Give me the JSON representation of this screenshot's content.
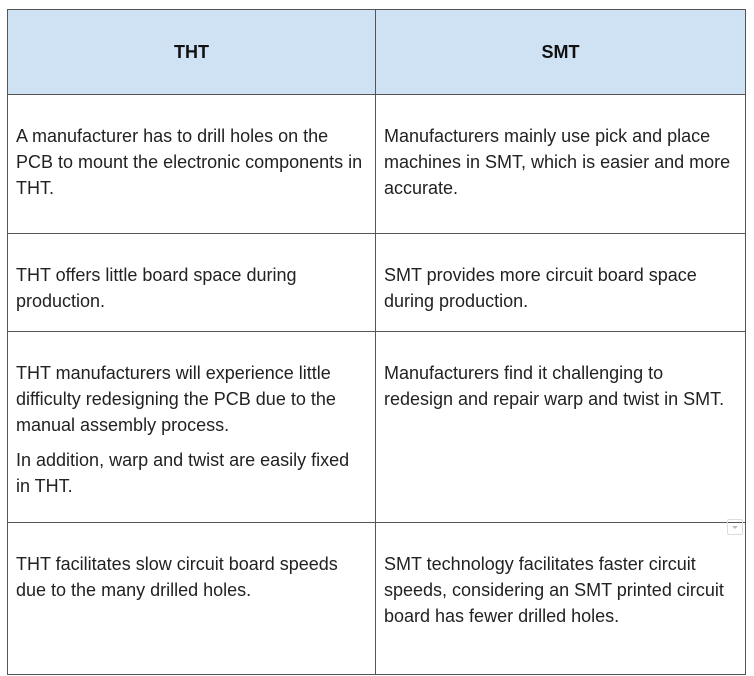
{
  "table": {
    "header": [
      "THT",
      "SMT"
    ],
    "rows": [
      [
        [
          "A manufacturer has to drill holes on the PCB to mount the electronic components in THT."
        ],
        [
          "Manufacturers mainly use pick and place machines in SMT, which is easier and more accurate."
        ]
      ],
      [
        [
          "THT offers little board space during production."
        ],
        [
          "SMT provides more circuit board space during production."
        ]
      ],
      [
        [
          "THT manufacturers will experience little difficulty redesigning the PCB due to the manual assembly process.",
          "In addition, warp and twist are easily fixed in THT."
        ],
        [
          "Manufacturers find it challenging to redesign and repair warp and twist in SMT."
        ]
      ],
      [
        [
          "THT facilitates slow circuit board speeds due to the many drilled holes."
        ],
        [
          "SMT technology facilitates faster circuit speeds, considering an SMT printed circuit board has fewer drilled holes."
        ]
      ]
    ]
  }
}
